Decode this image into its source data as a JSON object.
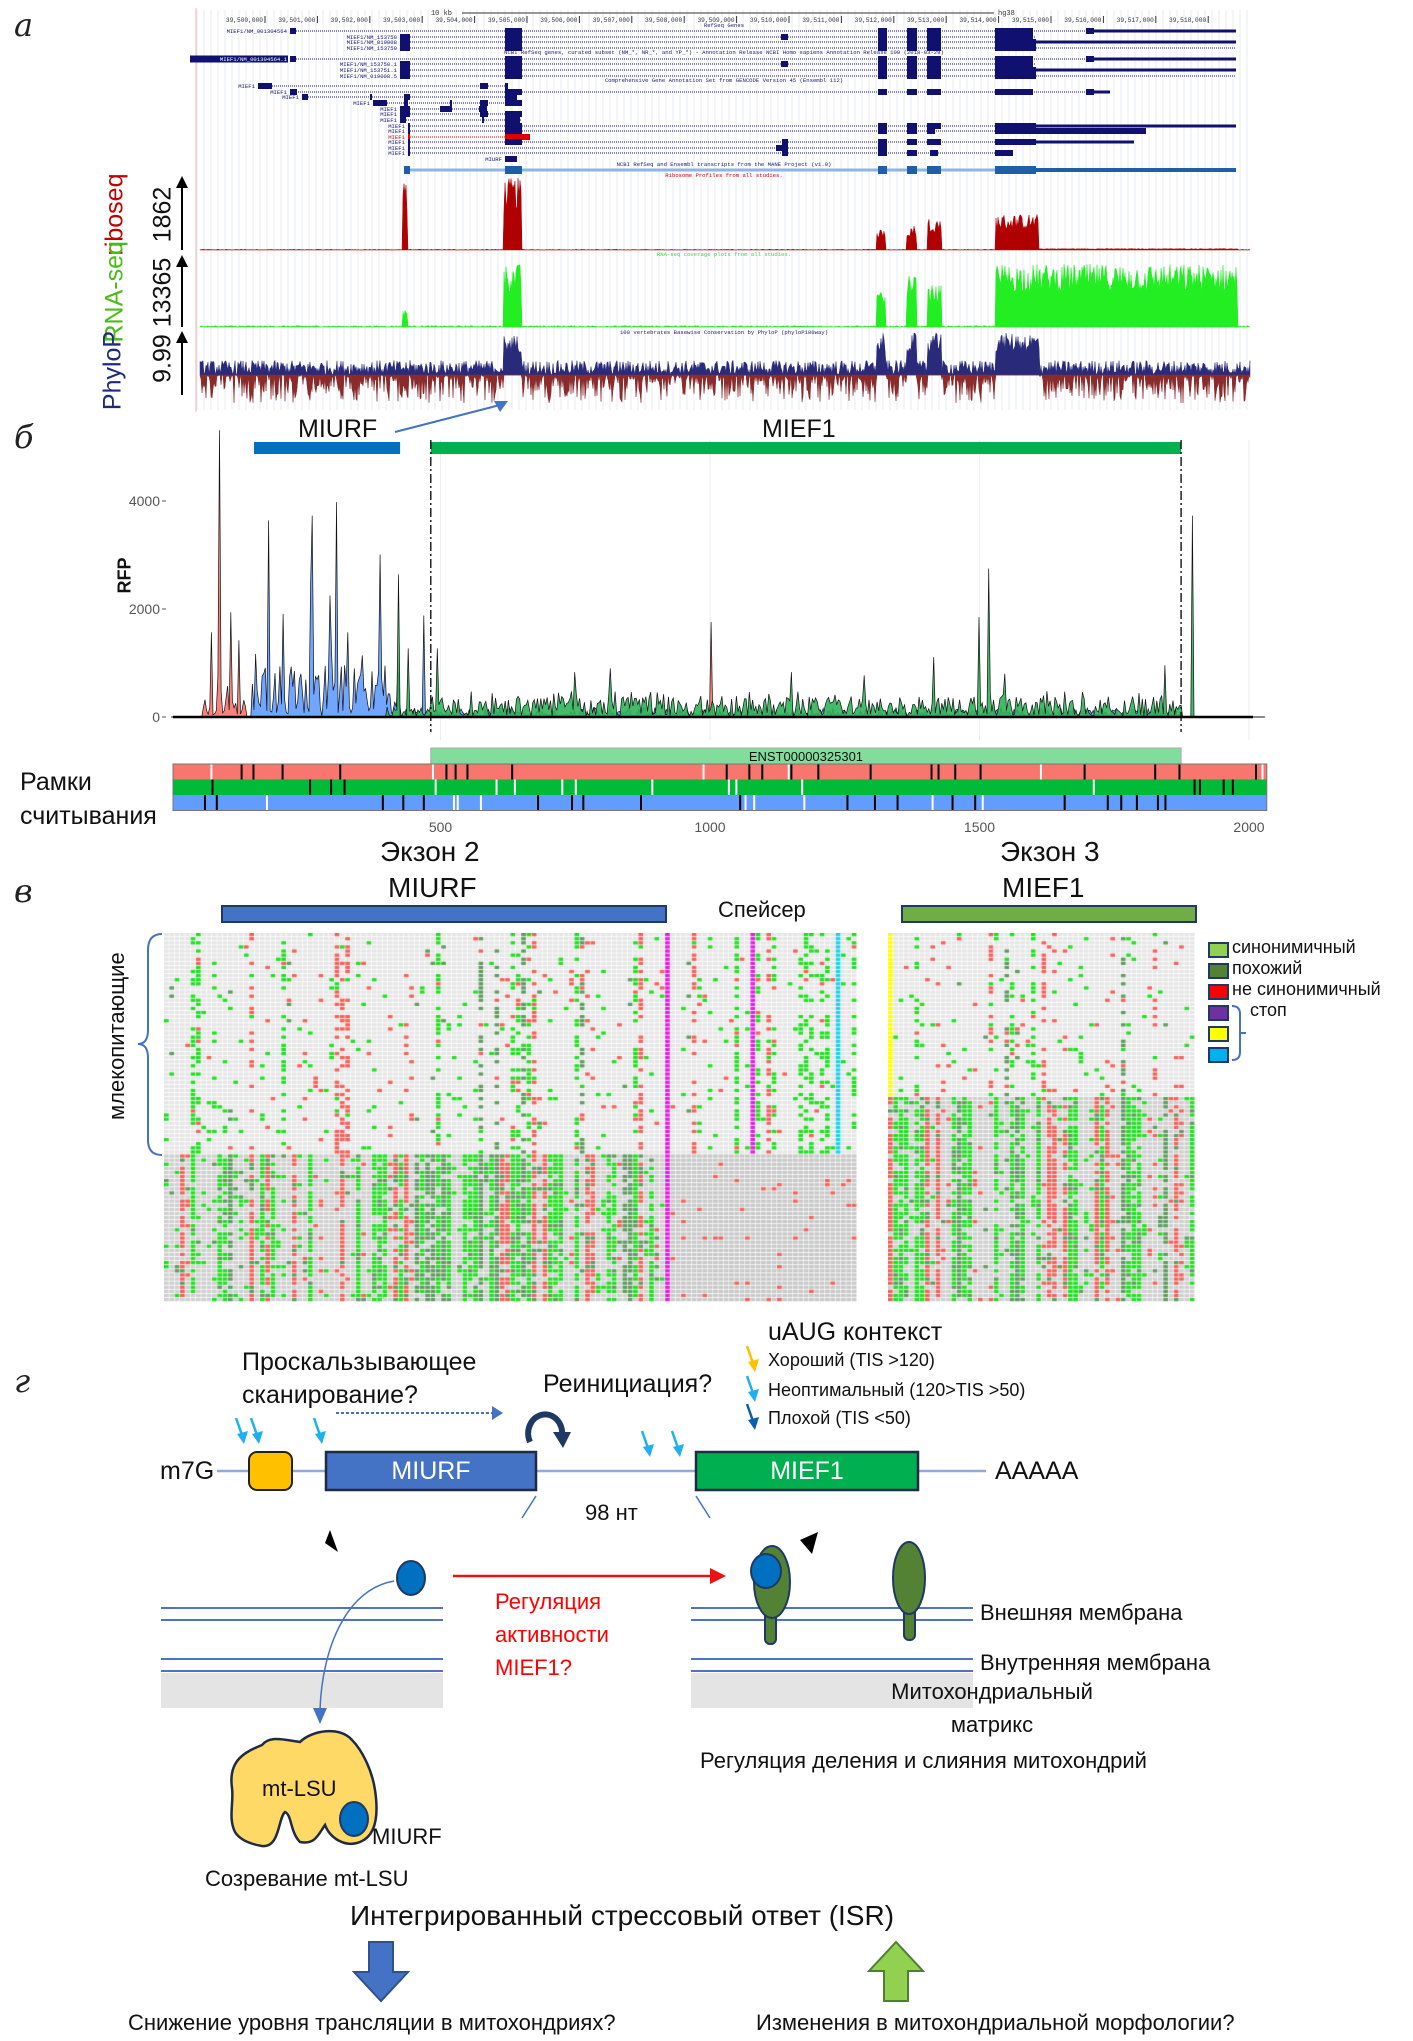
{
  "panel_labels": {
    "a": "а",
    "b": "б",
    "c": "в",
    "d": "г"
  },
  "browser": {
    "scale_label": "10 kb",
    "assembly": "hg38",
    "ticks": [
      "39,500,000",
      "39,501,000",
      "39,502,000",
      "39,503,000",
      "39,504,000",
      "39,505,000",
      "39,506,000",
      "39,507,000",
      "39,508,000",
      "39,509,000",
      "39,510,000",
      "39,511,000",
      "39,512,000",
      "39,513,000",
      "39,514,000",
      "39,515,000",
      "39,516,000",
      "39,517,000",
      "39,518,000"
    ],
    "track_titles": {
      "refseq": "RefSeq Genes",
      "curated": "NCBI RefSeq genes, curated subset (NM_*, NR_*, and YP_*) - Annotation Release NCBI Homo sapiens Annotation Release 109 (2018-03-29)",
      "gencode": "Comprehensive Gene Annotation Set from GENCODE Version 45 (Ensembl 112)",
      "mane": "NCBI RefSeq and Ensembl transcripts from the MANE Project (v1.0)",
      "ribo": "Ribosome Profiles from all studies.",
      "rna": "RNA-seq coverage plots from all studies.",
      "phylop": "100 vertebrates Basewise Conservation by PhyloP (phyloP100way)"
    },
    "transcript_labels": [
      "MIEF1/NM_001304564",
      "MIEF1/NM_153750",
      "MIEF1/NM_019008",
      "MIEF1/NM_153750",
      "MIEF1/NM_001304564.1",
      "MIEF1/NM_153750.1",
      "MIEF1/NM_153751.1",
      "MIEF1/NM_019008.5",
      "MIEF1",
      "MIURF"
    ],
    "tracks": [
      {
        "name": "riboseq",
        "max": "1862",
        "color": "#c00000"
      },
      {
        "name": "RNA-seq",
        "max": "13365",
        "color": "#4cbb17"
      },
      {
        "name": "PhyloP",
        "max": "9.99",
        "color": "#1f2a7a"
      }
    ]
  },
  "chart_data": {
    "type": "area",
    "title": "",
    "xlabel": "",
    "ylabel": "RFP",
    "xlim": [
      0,
      2033
    ],
    "ylim": [
      0,
      5400
    ],
    "xticks": [
      500,
      1000,
      1500,
      2000
    ],
    "yticks": [
      0,
      2000,
      4000
    ],
    "grid": "vertical",
    "orfs": [
      {
        "name": "MIURF",
        "start": 154,
        "end": 425,
        "color": "#0070c0"
      },
      {
        "name": "MIEF1",
        "start": 482,
        "end": 1874,
        "color": "#00b050"
      }
    ],
    "series": [
      {
        "name": "frame 1",
        "color": "#f8766d",
        "offset": 0,
        "noise": [
          {
            "from": 60,
            "to": 140,
            "level": 500
          },
          {
            "from": 482,
            "to": 1874,
            "level": 40
          }
        ],
        "peaks": [
          [
            75,
            1570
          ],
          [
            89,
            5310
          ],
          [
            112,
            1940
          ],
          [
            125,
            1420
          ],
          [
            1002,
            1760
          ]
        ]
      },
      {
        "name": "frame 2",
        "color": "#619cff",
        "offset": 1,
        "noise": [
          {
            "from": 150,
            "to": 425,
            "level": 800
          },
          {
            "from": 425,
            "to": 1874,
            "level": 120
          }
        ],
        "peaks": [
          [
            182,
            3640
          ],
          [
            207,
            1910
          ],
          [
            258,
            2440
          ],
          [
            261,
            3730
          ],
          [
            295,
            2250
          ],
          [
            307,
            3980
          ],
          [
            329,
            1570
          ],
          [
            356,
            1140
          ],
          [
            388,
            3010
          ],
          [
            469,
            1880
          ]
        ]
      },
      {
        "name": "frame 3",
        "color": "#2fb45a",
        "offset": 2,
        "noise": [
          {
            "from": 400,
            "to": 482,
            "level": 150
          },
          {
            "from": 482,
            "to": 1874,
            "level": 320
          }
        ],
        "peaks": [
          [
            422,
            2640
          ],
          [
            439,
            1270
          ],
          [
            495,
            1270
          ],
          [
            748,
            830
          ],
          [
            815,
            900
          ],
          [
            1150,
            830
          ],
          [
            1285,
            770
          ],
          [
            1414,
            1110
          ],
          [
            1500,
            1850
          ],
          [
            1518,
            2750
          ],
          [
            1548,
            800
          ],
          [
            1845,
            960
          ],
          [
            1895,
            3730
          ]
        ]
      }
    ],
    "transcript": "ENST00000325301",
    "frames_label": [
      "Рамки",
      "считывания"
    ],
    "frames": [
      {
        "color": "#f8766d",
        "stops": [
          131,
          153,
          207,
          314,
          511,
          528,
          550,
          633,
          1031,
          1073,
          1097,
          1151,
          1201,
          1298,
          1411,
          1424,
          1455,
          1502,
          1695,
          1826,
          1871,
          2013
        ],
        "starts": [
          75,
          486,
          988,
          1146,
          1614,
          2025
        ]
      },
      {
        "color": "#00ba38",
        "stops": [
          77,
          258,
          297,
          322,
          1899,
          1909,
          1953,
          1970
        ],
        "starts": [
          491,
          604,
          638,
          726,
          751,
          893,
          1035,
          1049,
          1171,
          1712
        ]
      },
      {
        "color": "#619cff",
        "stops": [
          63,
          85,
          393,
          431,
          469,
          681,
          744,
          765,
          872,
          1056,
          1255,
          1306,
          1348,
          1450,
          1492,
          1658,
          1738,
          1763,
          1792,
          1831,
          1845
        ],
        "starts": [
          178,
          525,
          532,
          575,
          1066,
          1082,
          1175,
          1413,
          1506
        ]
      }
    ],
    "exon_labels": [
      "Экзон 2",
      "Экзон 3"
    ]
  },
  "alignment": {
    "headers": {
      "miurf": "MIURF",
      "spacer": "Спейсер",
      "mief1": "MIEF1"
    },
    "group_label": "млекопитающие",
    "legend": [
      {
        "label": "синонимичный",
        "color": "#92d050"
      },
      {
        "label": "похожий",
        "color": "#548235"
      },
      {
        "label": "не синонимичный",
        "color": "#ff0000"
      },
      {
        "label": "",
        "color": "#7030a0"
      },
      {
        "label": "",
        "color": "#ffff00"
      },
      {
        "label": "",
        "color": "#00b0f0"
      }
    ],
    "stop_label": "стоп"
  },
  "model": {
    "uaug_title": "uAUG контекст",
    "uaug_legend": [
      {
        "label": "Хороший (TIS >120)",
        "color": "#ffc000"
      },
      {
        "label": "Неоптимальный (120>TIS >50)",
        "color": "#1fb0f0"
      },
      {
        "label": "Плохой (TIS <50)",
        "color": "#0b5fb0"
      }
    ],
    "leaky_scanning": [
      "Проскальзывающее",
      "сканирование?"
    ],
    "reinitiation": "Реинициация?",
    "cap": "m7G",
    "polya": "AAAAA",
    "miurf": "MIURF",
    "mief1": "MIEF1",
    "spacer_len": "98 нт",
    "regulation": [
      "Регуляция",
      "активности",
      "MIEF1?"
    ],
    "outer_membrane": "Внешняя мембрана",
    "inner_membrane": "Внутренняя мембрана",
    "matrix": [
      "Митохондриальный",
      "матрикс"
    ],
    "fission_fusion": "Регуляция деления и слияния митохондрий",
    "mtlsu": "mt-LSU",
    "miurf_bound": "MIURF",
    "mtlsu_maturation": "Созревание mt-LSU",
    "isr": "Интегрированный стрессовый ответ (ISR)",
    "outcome_left": "Снижение уровня  трансляции в митохондриях?",
    "outcome_right": "Изменения в митохондриальной морфологии?"
  }
}
